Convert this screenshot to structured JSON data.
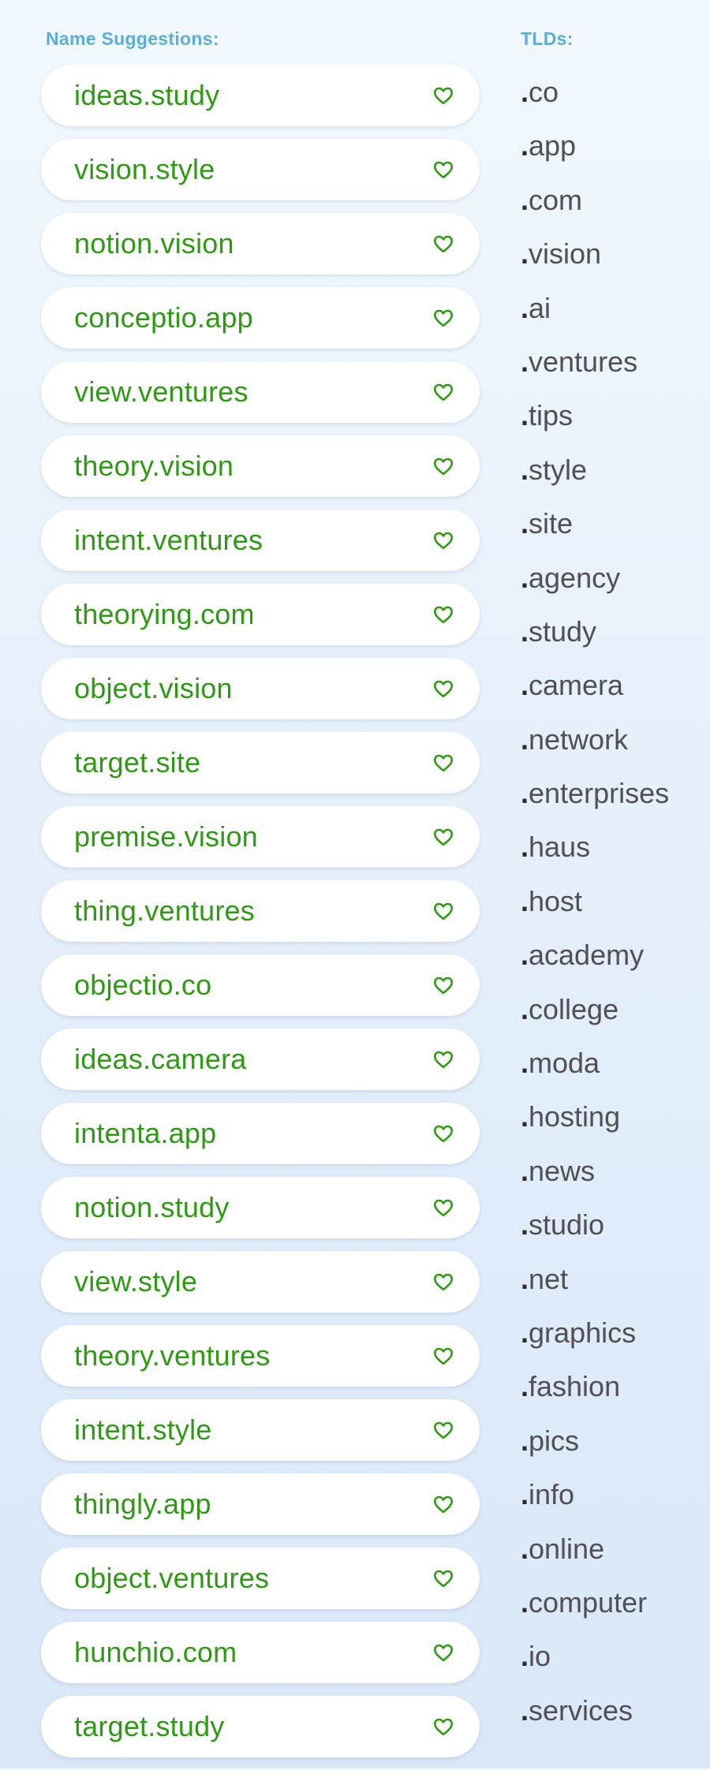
{
  "labels": {
    "names_title": "Name Suggestions:",
    "tlds_title": "TLDs:"
  },
  "names": [
    {
      "name": "ideas",
      "tld": ".study"
    },
    {
      "name": "vision",
      "tld": ".style"
    },
    {
      "name": "notion",
      "tld": ".vision"
    },
    {
      "name": "conceptio",
      "tld": ".app"
    },
    {
      "name": "view",
      "tld": ".ventures"
    },
    {
      "name": "theory",
      "tld": ".vision"
    },
    {
      "name": "intent",
      "tld": ".ventures"
    },
    {
      "name": "theorying",
      "tld": ".com"
    },
    {
      "name": "object",
      "tld": ".vision"
    },
    {
      "name": "target",
      "tld": ".site"
    },
    {
      "name": "premise",
      "tld": ".vision"
    },
    {
      "name": "thing",
      "tld": ".ventures"
    },
    {
      "name": "objectio",
      "tld": ".co"
    },
    {
      "name": "ideas",
      "tld": ".camera"
    },
    {
      "name": "intenta",
      "tld": ".app"
    },
    {
      "name": "notion",
      "tld": ".study"
    },
    {
      "name": "view",
      "tld": ".style"
    },
    {
      "name": "theory",
      "tld": ".ventures"
    },
    {
      "name": "intent",
      "tld": ".style"
    },
    {
      "name": "thingly",
      "tld": ".app"
    },
    {
      "name": "object",
      "tld": ".ventures"
    },
    {
      "name": "hunchio",
      "tld": ".com"
    },
    {
      "name": "target",
      "tld": ".study"
    }
  ],
  "tlds": [
    "co",
    "app",
    "com",
    "vision",
    "ai",
    "ventures",
    "tips",
    "style",
    "site",
    "agency",
    "study",
    "camera",
    "network",
    "enterprises",
    "haus",
    "host",
    "academy",
    "college",
    "moda",
    "hosting",
    "news",
    "studio",
    "net",
    "graphics",
    "fashion",
    "pics",
    "info",
    "online",
    "computer",
    "io",
    "services"
  ],
  "favorite_icon": "heart-outline-icon",
  "colors": {
    "accent": "#5aaed8",
    "name_text": "#2e9a14",
    "tld_text": "#4f4f55"
  }
}
